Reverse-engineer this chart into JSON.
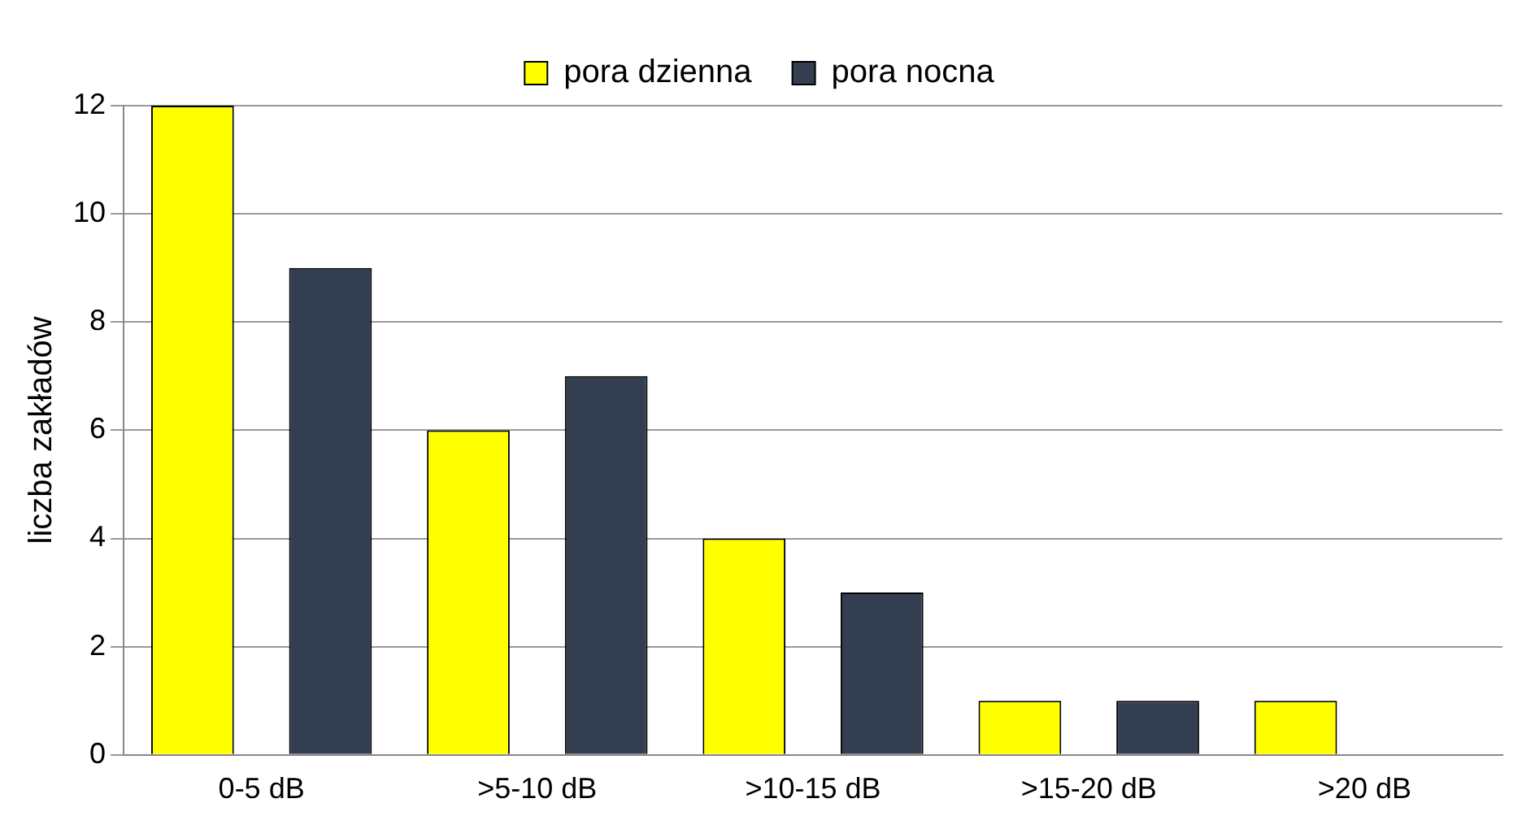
{
  "chart_data": {
    "type": "bar",
    "ylabel": "liczba zakładów",
    "categories": [
      "0-5 dB",
      ">5-10 dB",
      ">10-15 dB",
      ">15-20 dB",
      ">20 dB"
    ],
    "series": [
      {
        "name": "pora dzienna",
        "color": "#ffff00",
        "values": [
          12,
          6,
          4,
          1,
          1
        ]
      },
      {
        "name": "pora nocna",
        "color": "#333f50",
        "values": [
          9,
          7,
          3,
          1,
          0
        ]
      }
    ],
    "ylim": [
      0,
      12
    ],
    "yticks": [
      0,
      2,
      4,
      6,
      8,
      10,
      12
    ],
    "grid": "y",
    "legend": "top"
  }
}
